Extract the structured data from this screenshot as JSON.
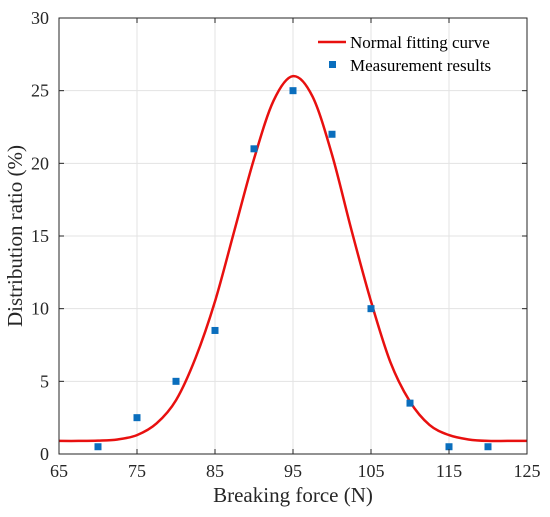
{
  "chart_data": {
    "type": "scatter",
    "xlabel": "Breaking force (N)",
    "ylabel": "Distribution ratio (%)",
    "xlim": [
      65,
      125
    ],
    "ylim": [
      0,
      30
    ],
    "xticks": [
      65,
      75,
      85,
      95,
      105,
      115,
      125
    ],
    "yticks": [
      0,
      5,
      10,
      15,
      20,
      25,
      30
    ],
    "xtick_labels": [
      "65",
      "75",
      "85",
      "95",
      "105",
      "115",
      "125"
    ],
    "ytick_labels": [
      "0",
      "5",
      "10",
      "15",
      "20",
      "25",
      "30"
    ],
    "grid": true,
    "legend_position": "top-right",
    "series": [
      {
        "name": "Normal fitting curve",
        "kind": "line",
        "color": "#e8100f",
        "x": [
          65,
          67.5,
          70,
          72.5,
          75,
          77.5,
          80,
          82.5,
          85,
          87.5,
          90,
          92.5,
          95,
          97.5,
          100,
          102.5,
          105,
          107.5,
          110,
          112.5,
          115,
          117.5,
          120,
          122.5,
          125
        ],
        "y": [
          0.9,
          0.9,
          0.92,
          1.0,
          1.3,
          2.1,
          3.7,
          6.6,
          10.5,
          15.4,
          20.3,
          24.3,
          26.0,
          24.6,
          20.6,
          15.4,
          10.5,
          6.3,
          3.6,
          2.0,
          1.3,
          1.0,
          0.9,
          0.9,
          0.9
        ]
      },
      {
        "name": "Measurement results",
        "kind": "scatter",
        "color": "#0a6ebd",
        "x": [
          70,
          75,
          80,
          85,
          90,
          95,
          100,
          105,
          110,
          115,
          120
        ],
        "y": [
          0.5,
          2.5,
          5.0,
          8.5,
          21.0,
          25.0,
          22.0,
          10.0,
          3.5,
          0.5,
          0.5
        ]
      }
    ]
  }
}
